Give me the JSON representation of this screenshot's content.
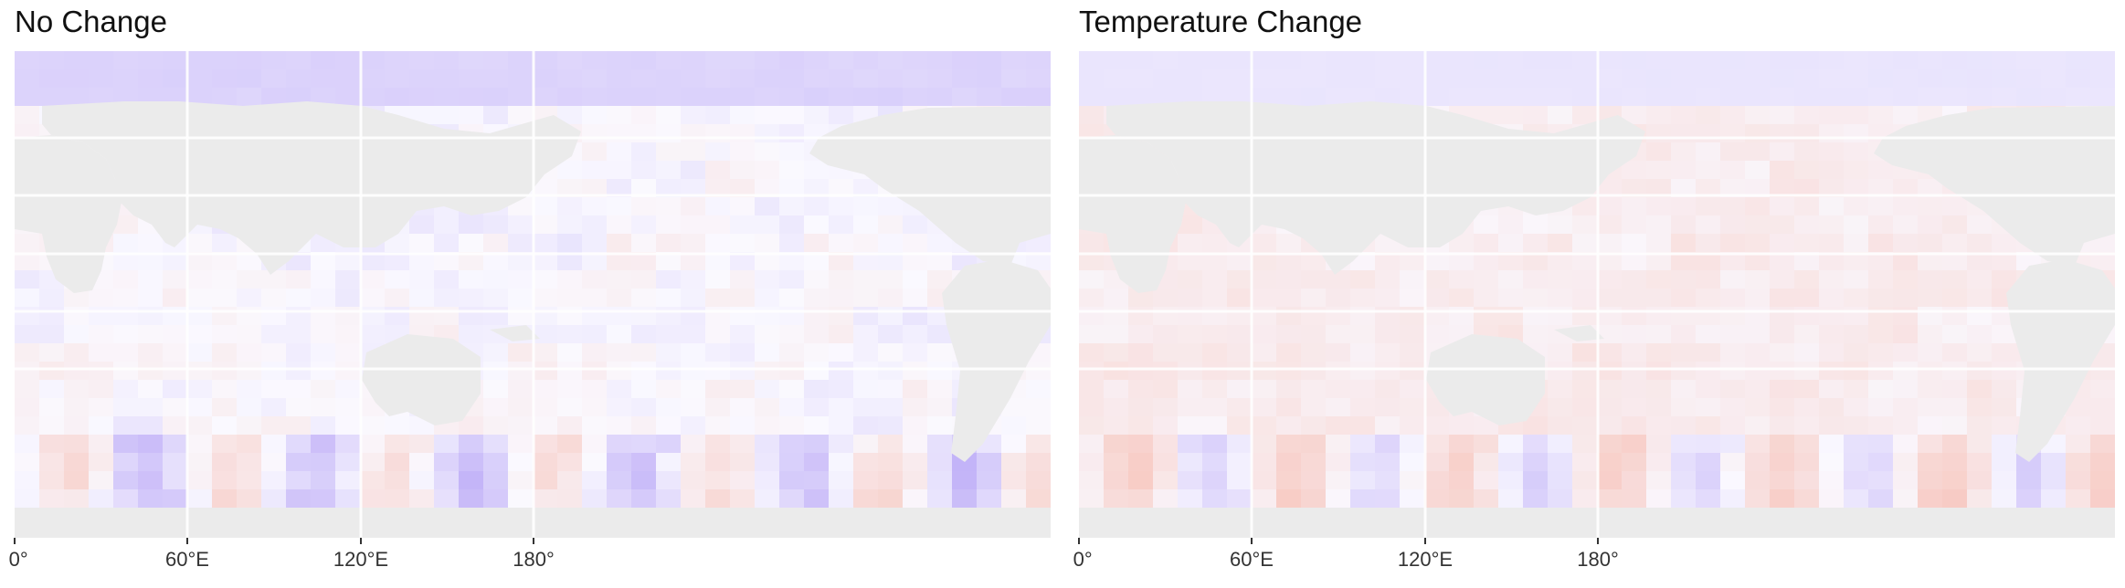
{
  "panels": [
    {
      "id": "no-change",
      "title": "No Change",
      "variant": "no_change"
    },
    {
      "id": "temperature-change",
      "title": "Temperature Change",
      "variant": "temp_change"
    }
  ],
  "x_axis": {
    "ticks": [
      "0°",
      "60°E",
      "120°E",
      "180°"
    ],
    "tick_lon": [
      0,
      60,
      120,
      180
    ]
  },
  "colors": {
    "land": "#ebebeb",
    "ocean_neutral": "#faf9ff",
    "positive": "#f4a090",
    "negative": "#a08cf0",
    "grid": "#ffffff"
  }
}
